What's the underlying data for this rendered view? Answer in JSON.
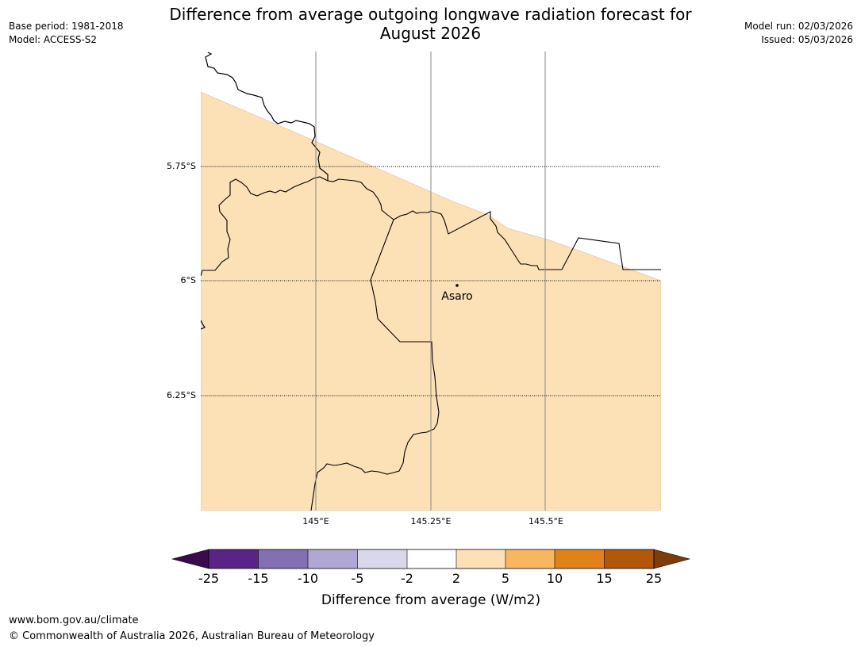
{
  "header": {
    "title_line1": "Difference from average outgoing longwave radiation forecast for",
    "title_line2": "August 2026",
    "base_period": "Base period: 1981-2018",
    "model": "Model: ACCESS-S2",
    "model_run": "Model run: 02/03/2026",
    "issued": "Issued: 05/03/2026"
  },
  "map": {
    "lat_labels": [
      "5.75°S",
      "6°S",
      "6.25°S"
    ],
    "lon_labels": [
      "145°E",
      "145.25°E",
      "145.5°E"
    ],
    "place": {
      "name": "Asaro"
    },
    "fill_color": "#fce0b6",
    "fill_category": "2 to 5"
  },
  "colorbar": {
    "label": "Difference from average (W/m2)",
    "ticks": [
      "-25",
      "-15",
      "-10",
      "-5",
      "-2",
      "2",
      "5",
      "10",
      "15",
      "25"
    ],
    "colors": [
      "#3b0a4f",
      "#5a2487",
      "#8270b0",
      "#b0a8d3",
      "#d9d8ea",
      "#ffffff",
      "#fce0b6",
      "#fab560",
      "#e0821a",
      "#b2580a",
      "#7f3b08"
    ]
  },
  "footer": {
    "url": "www.bom.gov.au/climate",
    "copyright": "© Commonwealth of Australia 2026, Australian Bureau of Meteorology"
  }
}
